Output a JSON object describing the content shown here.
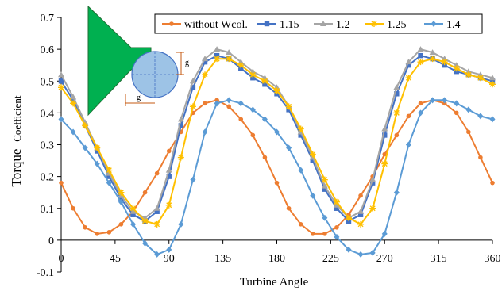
{
  "chart_data": {
    "type": "line",
    "xlabel": "Turbine Angle",
    "ylabel": "Torque",
    "ylabel_suffix": "Coefficient",
    "xlim": [
      0,
      360
    ],
    "ylim": [
      -0.1,
      0.7
    ],
    "xticks": [
      "0",
      "45",
      "90",
      "135",
      "180",
      "225",
      "270",
      "315",
      "360"
    ],
    "yticks": [
      "-0.1",
      "0",
      "0.1",
      "0.2",
      "0.3",
      "0.4",
      "0.5",
      "0.6",
      "0.7"
    ],
    "grid": false,
    "legend_position": "top-right",
    "inset_labels": [
      "g",
      "g"
    ],
    "series": [
      {
        "name": "without Wcol.",
        "color": "#ED7D31",
        "marker": "circle",
        "points": [
          [
            0,
            0.18
          ],
          [
            10,
            0.1
          ],
          [
            20,
            0.04
          ],
          [
            30,
            0.02
          ],
          [
            40,
            0.025
          ],
          [
            50,
            0.05
          ],
          [
            60,
            0.09
          ],
          [
            70,
            0.15
          ],
          [
            80,
            0.21
          ],
          [
            90,
            0.28
          ],
          [
            100,
            0.34
          ],
          [
            110,
            0.4
          ],
          [
            120,
            0.43
          ],
          [
            130,
            0.44
          ],
          [
            140,
            0.42
          ],
          [
            150,
            0.38
          ],
          [
            160,
            0.33
          ],
          [
            170,
            0.26
          ],
          [
            180,
            0.18
          ],
          [
            190,
            0.1
          ],
          [
            200,
            0.05
          ],
          [
            210,
            0.02
          ],
          [
            220,
            0.02
          ],
          [
            230,
            0.04
          ],
          [
            240,
            0.08
          ],
          [
            250,
            0.14
          ],
          [
            260,
            0.2
          ],
          [
            270,
            0.27
          ],
          [
            280,
            0.33
          ],
          [
            290,
            0.39
          ],
          [
            300,
            0.43
          ],
          [
            310,
            0.44
          ],
          [
            320,
            0.43
          ],
          [
            330,
            0.4
          ],
          [
            340,
            0.34
          ],
          [
            350,
            0.26
          ],
          [
            360,
            0.18
          ]
        ]
      },
      {
        "name": "1.15",
        "color": "#4472C4",
        "marker": "square",
        "points": [
          [
            0,
            0.5
          ],
          [
            10,
            0.44
          ],
          [
            20,
            0.36
          ],
          [
            30,
            0.28
          ],
          [
            40,
            0.2
          ],
          [
            50,
            0.13
          ],
          [
            60,
            0.08
          ],
          [
            70,
            0.06
          ],
          [
            80,
            0.09
          ],
          [
            90,
            0.2
          ],
          [
            100,
            0.36
          ],
          [
            110,
            0.48
          ],
          [
            120,
            0.56
          ],
          [
            130,
            0.58
          ],
          [
            140,
            0.57
          ],
          [
            150,
            0.54
          ],
          [
            160,
            0.51
          ],
          [
            170,
            0.49
          ],
          [
            180,
            0.46
          ],
          [
            190,
            0.41
          ],
          [
            200,
            0.33
          ],
          [
            210,
            0.25
          ],
          [
            220,
            0.16
          ],
          [
            230,
            0.1
          ],
          [
            240,
            0.06
          ],
          [
            250,
            0.08
          ],
          [
            260,
            0.18
          ],
          [
            270,
            0.33
          ],
          [
            280,
            0.46
          ],
          [
            290,
            0.55
          ],
          [
            300,
            0.58
          ],
          [
            310,
            0.57
          ],
          [
            320,
            0.55
          ],
          [
            330,
            0.53
          ],
          [
            340,
            0.52
          ],
          [
            350,
            0.51
          ],
          [
            360,
            0.5
          ]
        ]
      },
      {
        "name": "1.2",
        "color": "#A5A5A5",
        "marker": "triangle",
        "points": [
          [
            0,
            0.52
          ],
          [
            10,
            0.45
          ],
          [
            20,
            0.37
          ],
          [
            30,
            0.29
          ],
          [
            40,
            0.21
          ],
          [
            50,
            0.14
          ],
          [
            60,
            0.09
          ],
          [
            70,
            0.07
          ],
          [
            80,
            0.1
          ],
          [
            90,
            0.22
          ],
          [
            100,
            0.38
          ],
          [
            110,
            0.5
          ],
          [
            120,
            0.57
          ],
          [
            130,
            0.6
          ],
          [
            140,
            0.59
          ],
          [
            150,
            0.56
          ],
          [
            160,
            0.53
          ],
          [
            170,
            0.51
          ],
          [
            180,
            0.48
          ],
          [
            190,
            0.42
          ],
          [
            200,
            0.34
          ],
          [
            210,
            0.26
          ],
          [
            220,
            0.17
          ],
          [
            230,
            0.11
          ],
          [
            240,
            0.07
          ],
          [
            250,
            0.09
          ],
          [
            260,
            0.19
          ],
          [
            270,
            0.35
          ],
          [
            280,
            0.48
          ],
          [
            290,
            0.56
          ],
          [
            300,
            0.6
          ],
          [
            310,
            0.59
          ],
          [
            320,
            0.57
          ],
          [
            330,
            0.55
          ],
          [
            340,
            0.53
          ],
          [
            350,
            0.52
          ],
          [
            360,
            0.51
          ]
        ]
      },
      {
        "name": "1.25",
        "color": "#FFC000",
        "marker": "star",
        "points": [
          [
            0,
            0.48
          ],
          [
            10,
            0.43
          ],
          [
            20,
            0.36
          ],
          [
            30,
            0.29
          ],
          [
            40,
            0.22
          ],
          [
            50,
            0.15
          ],
          [
            60,
            0.1
          ],
          [
            70,
            0.06
          ],
          [
            80,
            0.05
          ],
          [
            90,
            0.11
          ],
          [
            100,
            0.26
          ],
          [
            110,
            0.42
          ],
          [
            120,
            0.52
          ],
          [
            130,
            0.57
          ],
          [
            140,
            0.57
          ],
          [
            150,
            0.55
          ],
          [
            160,
            0.52
          ],
          [
            170,
            0.5
          ],
          [
            180,
            0.47
          ],
          [
            190,
            0.42
          ],
          [
            200,
            0.35
          ],
          [
            210,
            0.27
          ],
          [
            220,
            0.19
          ],
          [
            230,
            0.12
          ],
          [
            240,
            0.07
          ],
          [
            250,
            0.05
          ],
          [
            260,
            0.1
          ],
          [
            270,
            0.24
          ],
          [
            280,
            0.4
          ],
          [
            290,
            0.51
          ],
          [
            300,
            0.56
          ],
          [
            310,
            0.57
          ],
          [
            320,
            0.56
          ],
          [
            330,
            0.54
          ],
          [
            340,
            0.52
          ],
          [
            350,
            0.51
          ],
          [
            360,
            0.49
          ]
        ]
      },
      {
        "name": "1.4",
        "color": "#5B9BD5",
        "marker": "diamond",
        "points": [
          [
            0,
            0.38
          ],
          [
            10,
            0.34
          ],
          [
            20,
            0.29
          ],
          [
            30,
            0.24
          ],
          [
            40,
            0.18
          ],
          [
            50,
            0.12
          ],
          [
            60,
            0.05
          ],
          [
            70,
            -0.01
          ],
          [
            80,
            -0.045
          ],
          [
            90,
            -0.03
          ],
          [
            100,
            0.05
          ],
          [
            110,
            0.19
          ],
          [
            120,
            0.34
          ],
          [
            130,
            0.43
          ],
          [
            140,
            0.44
          ],
          [
            150,
            0.43
          ],
          [
            160,
            0.41
          ],
          [
            170,
            0.38
          ],
          [
            180,
            0.34
          ],
          [
            190,
            0.29
          ],
          [
            200,
            0.22
          ],
          [
            210,
            0.14
          ],
          [
            220,
            0.07
          ],
          [
            230,
            0.01
          ],
          [
            240,
            -0.03
          ],
          [
            250,
            -0.045
          ],
          [
            260,
            -0.04
          ],
          [
            270,
            0.02
          ],
          [
            280,
            0.15
          ],
          [
            290,
            0.3
          ],
          [
            300,
            0.4
          ],
          [
            310,
            0.44
          ],
          [
            320,
            0.44
          ],
          [
            330,
            0.43
          ],
          [
            340,
            0.41
          ],
          [
            350,
            0.39
          ],
          [
            360,
            0.38
          ]
        ]
      }
    ]
  }
}
